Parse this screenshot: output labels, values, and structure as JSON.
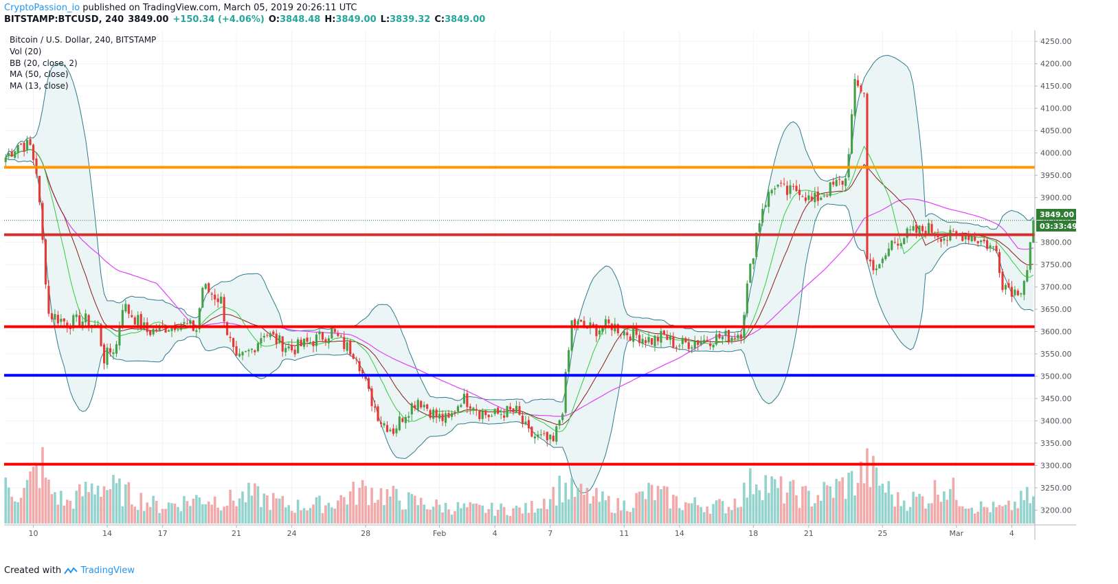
{
  "header": {
    "author": "CryptoPassion_io",
    "published_text": "published on TradingView.com, March 05, 2019 20:26:11 UTC",
    "symbol": "BITSTAMP:BTCUSD, 240",
    "price": "3849.00",
    "change": "+150.34 (+4.06%)",
    "o_label": "O:",
    "o_value": "3848.48",
    "h_label": "H:",
    "h_value": "3849.00",
    "l_label": "L:",
    "l_value": "3839.32",
    "c_label": "C:",
    "c_value": "3849.00"
  },
  "legend": [
    "Bitcoin / U.S. Dollar, 240, BITSTAMP",
    "Vol (20)",
    "BB (20, close, 2)",
    "MA (50, close)",
    "MA (13, close)"
  ],
  "footer": {
    "created_with": "Created with",
    "brand": "TradingView"
  },
  "price_tag": "3849.00",
  "timer_tag": "03:33:49",
  "colors": {
    "up": "#26a69a",
    "up_body": "#43a047",
    "down": "#ef5350",
    "down_body": "#e53935",
    "bb": "#2c7a8c",
    "bb_fill": "#e6f2f2",
    "ma50": "#e040fb",
    "ma13": "#2ecc40",
    "ma20": "#8b1a1a",
    "orange_line": "#ff9800",
    "red_line": "#ff0000",
    "dark_red_line": "#d32f2f",
    "blue_line": "#0000ff"
  },
  "chart_data": {
    "type": "candlestick",
    "y_axis": {
      "ticks": [
        3200,
        3250,
        3300,
        3350,
        3400,
        3450,
        3500,
        3550,
        3600,
        3650,
        3700,
        3750,
        3800,
        3850,
        3900,
        3950,
        4000,
        4050,
        4100,
        4150,
        4200,
        4250
      ],
      "tick_labels": [
        "3200.00",
        "3250.00",
        "3300.00",
        "3350.00",
        "3400.00",
        "3450.00",
        "3500.00",
        "3550.00",
        "3600.00",
        "3650.00",
        "3700.00",
        "3750.00",
        "3800.00",
        "3850.00",
        "3900.00",
        "3950.00",
        "4000.00",
        "4050.00",
        "4100.00",
        "4150.00",
        "4200.00",
        "4250.00"
      ],
      "range": [
        3170,
        4275
      ]
    },
    "x_axis": {
      "labels": [
        "10",
        "14",
        "17",
        "21",
        "24",
        "28",
        "Feb",
        "4",
        "7",
        "11",
        "14",
        "18",
        "21",
        "25",
        "Mar",
        "4"
      ],
      "label_index": [
        9,
        33,
        51,
        75,
        93,
        117,
        141,
        159,
        177,
        201,
        219,
        243,
        261,
        285,
        309,
        327
      ],
      "bar_count": 335
    },
    "horizontal_lines": [
      {
        "price": 3968,
        "color": "orange"
      },
      {
        "price": 3817,
        "color": "darkred"
      },
      {
        "price": 3611,
        "color": "red"
      },
      {
        "price": 3502,
        "color": "blue"
      },
      {
        "price": 3303,
        "color": "red"
      }
    ],
    "current_price": 3849,
    "close_anchors": [
      [
        0,
        3990
      ],
      [
        4,
        4020
      ],
      [
        8,
        4015
      ],
      [
        10,
        3960
      ],
      [
        12,
        3800
      ],
      [
        14,
        3640
      ],
      [
        20,
        3620
      ],
      [
        26,
        3625
      ],
      [
        30,
        3610
      ],
      [
        32,
        3540
      ],
      [
        36,
        3570
      ],
      [
        38,
        3660
      ],
      [
        42,
        3630
      ],
      [
        46,
        3600
      ],
      [
        50,
        3605
      ],
      [
        56,
        3620
      ],
      [
        62,
        3605
      ],
      [
        64,
        3700
      ],
      [
        70,
        3670
      ],
      [
        72,
        3600
      ],
      [
        75,
        3530
      ],
      [
        80,
        3560
      ],
      [
        84,
        3600
      ],
      [
        88,
        3580
      ],
      [
        93,
        3560
      ],
      [
        100,
        3580
      ],
      [
        106,
        3600
      ],
      [
        110,
        3570
      ],
      [
        114,
        3550
      ],
      [
        118,
        3460
      ],
      [
        122,
        3400
      ],
      [
        126,
        3380
      ],
      [
        130,
        3420
      ],
      [
        134,
        3450
      ],
      [
        140,
        3410
      ],
      [
        144,
        3400
      ],
      [
        148,
        3450
      ],
      [
        152,
        3440
      ],
      [
        154,
        3420
      ],
      [
        158,
        3410
      ],
      [
        162,
        3420
      ],
      [
        166,
        3420
      ],
      [
        170,
        3370
      ],
      [
        174,
        3360
      ],
      [
        178,
        3350
      ],
      [
        181,
        3430
      ],
      [
        184,
        3620
      ],
      [
        188,
        3610
      ],
      [
        192,
        3605
      ],
      [
        197,
        3615
      ],
      [
        201,
        3600
      ],
      [
        206,
        3590
      ],
      [
        210,
        3580
      ],
      [
        214,
        3590
      ],
      [
        218,
        3570
      ],
      [
        222,
        3575
      ],
      [
        226,
        3580
      ],
      [
        230,
        3585
      ],
      [
        236,
        3590
      ],
      [
        239,
        3600
      ],
      [
        241,
        3700
      ],
      [
        244,
        3820
      ],
      [
        246,
        3880
      ],
      [
        250,
        3930
      ],
      [
        254,
        3910
      ],
      [
        258,
        3920
      ],
      [
        262,
        3890
      ],
      [
        266,
        3910
      ],
      [
        270,
        3930
      ],
      [
        273,
        3940
      ],
      [
        276,
        4150
      ],
      [
        279,
        4140
      ],
      [
        280,
        3760
      ],
      [
        284,
        3740
      ],
      [
        288,
        3800
      ],
      [
        294,
        3820
      ],
      [
        300,
        3830
      ],
      [
        306,
        3810
      ],
      [
        312,
        3820
      ],
      [
        318,
        3800
      ],
      [
        322,
        3780
      ],
      [
        324,
        3710
      ],
      [
        328,
        3690
      ],
      [
        330,
        3700
      ],
      [
        332,
        3740
      ],
      [
        334,
        3849
      ]
    ],
    "volume_anchors": [
      [
        0,
        60
      ],
      [
        6,
        55
      ],
      [
        10,
        90
      ],
      [
        12,
        100
      ],
      [
        14,
        60
      ],
      [
        20,
        35
      ],
      [
        30,
        70
      ],
      [
        40,
        50
      ],
      [
        50,
        30
      ],
      [
        64,
        45
      ],
      [
        72,
        40
      ],
      [
        80,
        50
      ],
      [
        93,
        30
      ],
      [
        105,
        35
      ],
      [
        117,
        60
      ],
      [
        130,
        40
      ],
      [
        141,
        30
      ],
      [
        155,
        25
      ],
      [
        170,
        25
      ],
      [
        181,
        65
      ],
      [
        184,
        55
      ],
      [
        200,
        30
      ],
      [
        210,
        55
      ],
      [
        220,
        35
      ],
      [
        235,
        30
      ],
      [
        241,
        60
      ],
      [
        244,
        85
      ],
      [
        250,
        60
      ],
      [
        262,
        45
      ],
      [
        276,
        75
      ],
      [
        280,
        95
      ],
      [
        290,
        40
      ],
      [
        300,
        45
      ],
      [
        304,
        70
      ],
      [
        315,
        30
      ],
      [
        325,
        25
      ],
      [
        332,
        45
      ],
      [
        334,
        40
      ]
    ],
    "volume_range": [
      0,
      160
    ]
  }
}
